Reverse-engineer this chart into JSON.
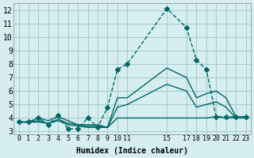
{
  "xlabel": "Humidex (Indice chaleur)",
  "ylabel": "",
  "bg_color": "#d6eef0",
  "grid_color": "#aacccc",
  "line_color": "#006666",
  "xlim": [
    -0.5,
    23.5
  ],
  "ylim": [
    2.8,
    12.5
  ],
  "xtick_positions": [
    0,
    1,
    2,
    3,
    4,
    5,
    6,
    7,
    8,
    9,
    10,
    11,
    15,
    17,
    18,
    19,
    20,
    21,
    22,
    23
  ],
  "xtick_labels": [
    "0",
    "1",
    "2",
    "3",
    "4",
    "5",
    "6",
    "7",
    "8",
    "9",
    "10",
    "11",
    "15",
    "17",
    "18",
    "19",
    "20",
    "21",
    "22",
    "23"
  ],
  "yticks": [
    3,
    4,
    5,
    6,
    7,
    8,
    9,
    10,
    11,
    12
  ],
  "series": [
    {
      "x": [
        0,
        1,
        2,
        3,
        4,
        5,
        6,
        7,
        8,
        9,
        10,
        11,
        15,
        17,
        18,
        19,
        20,
        21,
        22,
        23
      ],
      "y": [
        3.7,
        3.7,
        4.0,
        3.5,
        4.2,
        3.2,
        3.2,
        4.0,
        3.3,
        4.8,
        7.6,
        8.0,
        12.1,
        10.7,
        8.3,
        7.6,
        4.1,
        4.1,
        4.1,
        4.1
      ],
      "style": "--",
      "marker": "D",
      "markersize": 3
    },
    {
      "x": [
        0,
        1,
        2,
        3,
        4,
        5,
        6,
        7,
        8,
        9,
        10,
        11,
        15,
        17,
        18,
        19,
        20,
        21,
        22,
        23
      ],
      "y": [
        3.7,
        3.7,
        4.0,
        3.8,
        4.1,
        3.8,
        3.5,
        3.5,
        3.5,
        3.3,
        5.5,
        5.5,
        7.7,
        7.0,
        5.5,
        5.8,
        6.0,
        5.5,
        4.1,
        4.1
      ],
      "style": "-",
      "marker": null,
      "markersize": 0
    },
    {
      "x": [
        0,
        1,
        2,
        3,
        4,
        5,
        6,
        7,
        8,
        9,
        10,
        11,
        15,
        17,
        18,
        19,
        20,
        21,
        22,
        23
      ],
      "y": [
        3.7,
        3.7,
        3.8,
        3.6,
        3.9,
        3.6,
        3.5,
        3.4,
        3.4,
        3.3,
        4.8,
        5.0,
        6.5,
        6.0,
        4.8,
        5.0,
        5.2,
        4.8,
        4.0,
        4.0
      ],
      "style": "-",
      "marker": null,
      "markersize": 0
    },
    {
      "x": [
        0,
        1,
        2,
        3,
        4,
        5,
        6,
        7,
        8,
        9,
        10,
        11,
        15,
        17,
        18,
        19,
        20,
        21,
        22,
        23
      ],
      "y": [
        3.7,
        3.7,
        3.7,
        3.6,
        3.8,
        3.5,
        3.4,
        3.3,
        3.3,
        3.3,
        4.0,
        4.0,
        4.0,
        4.0,
        4.0,
        4.0,
        4.1,
        4.0,
        4.0,
        4.0
      ],
      "style": "-",
      "marker": null,
      "markersize": 0
    }
  ]
}
